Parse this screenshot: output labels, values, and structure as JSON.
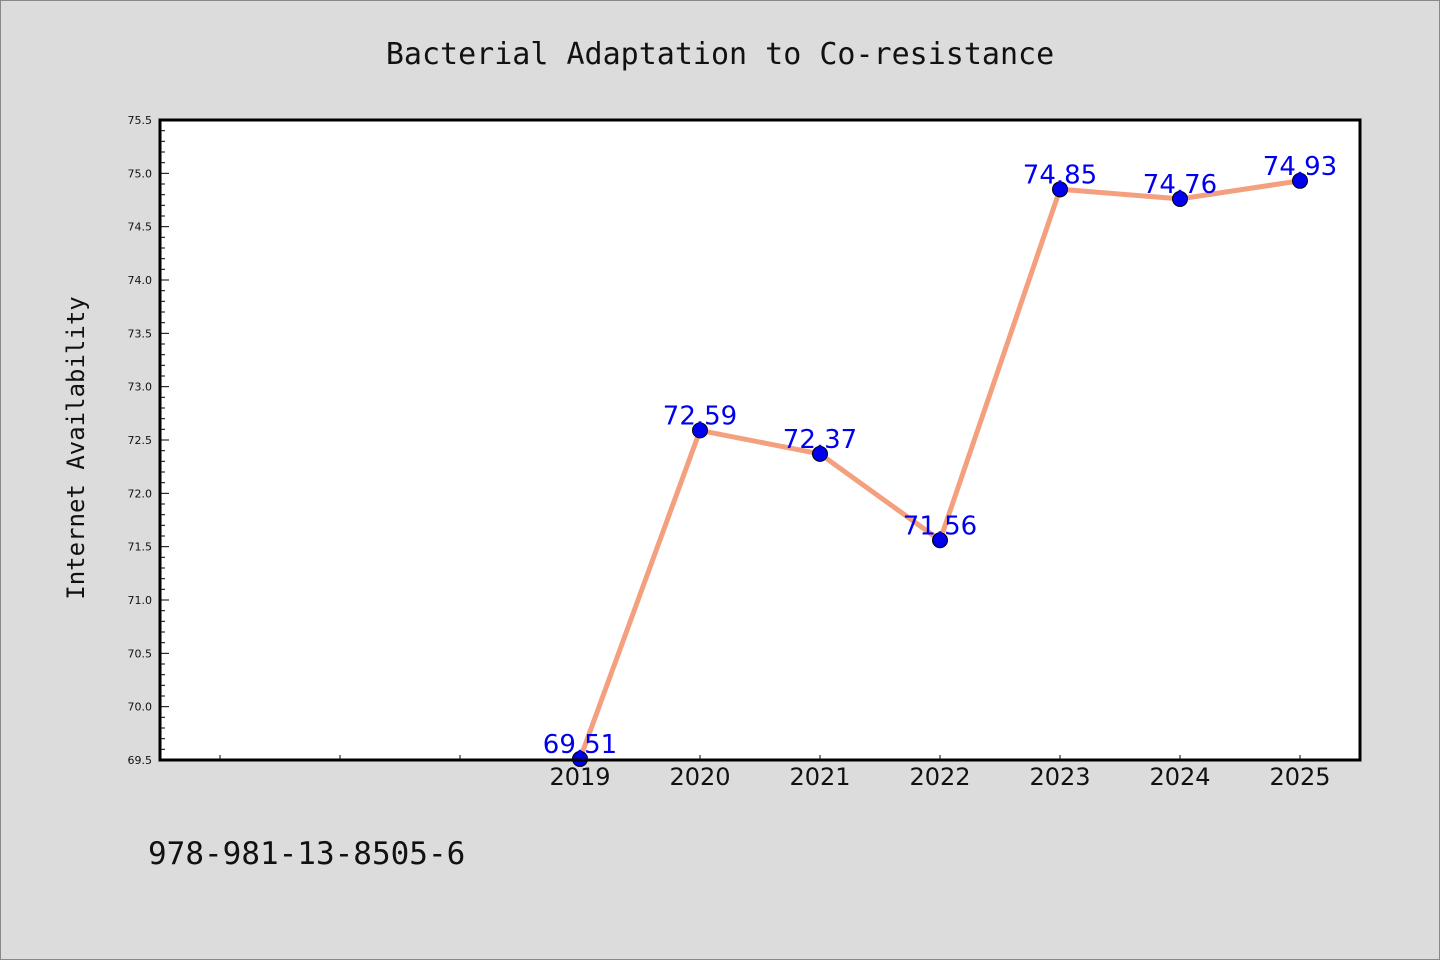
{
  "chart_data": {
    "type": "line",
    "title": "Bacterial Adaptation to Co-resistance",
    "xlabel": "",
    "ylabel": "Internet Availability",
    "categories": [
      "",
      "",
      "",
      "2019",
      "2020",
      "2021",
      "2022",
      "2023",
      "2024",
      "2025"
    ],
    "series": [
      {
        "x": [
          "2019",
          "2020",
          "2021",
          "2022",
          "2023",
          "2024",
          "2025"
        ],
        "values": [
          69.51,
          72.59,
          72.37,
          71.56,
          74.85,
          74.76,
          74.93
        ]
      }
    ],
    "ylim": [
      69.5,
      75.5
    ],
    "yticks": [
      "69.5",
      "70.0",
      "70.5",
      "71.0",
      "71.5",
      "72.0",
      "72.5",
      "73.0",
      "73.5",
      "74.0",
      "74.5",
      "75.0",
      "75.5"
    ],
    "data_labels": [
      "69.51",
      "72.59",
      "72.37",
      "71.56",
      "74.85",
      "74.76",
      "74.93"
    ],
    "grid": false,
    "legend": "none",
    "colors": {
      "background": "#dcdcdc",
      "plot_background": "#ffffff",
      "line": "#f4a07e",
      "marker": "#0000ee",
      "data_label": "#0000ee"
    }
  },
  "footer": {
    "isbn": "978-981-13-8505-6"
  }
}
